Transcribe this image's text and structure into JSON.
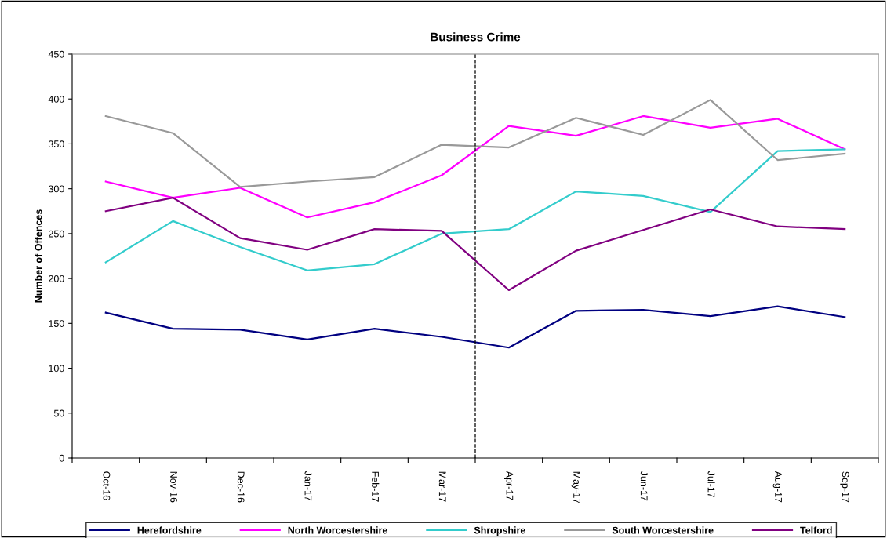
{
  "chart_data": {
    "type": "line",
    "title": "Business Crime",
    "ylabel": "Number of Offences",
    "categories": [
      "Oct-16",
      "Nov-16",
      "Dec-16",
      "Jan-17",
      "Feb-17",
      "Mar-17",
      "Apr-17",
      "May-17",
      "Jun-17",
      "Jul-17",
      "Aug-17",
      "Sep-17"
    ],
    "series": [
      {
        "name": "Herefordshire",
        "color": "#000080",
        "values": [
          162,
          144,
          143,
          132,
          144,
          135,
          123,
          164,
          165,
          158,
          169,
          157
        ]
      },
      {
        "name": "North Worcestershire",
        "color": "#ff00ff",
        "values": [
          308,
          290,
          301,
          268,
          285,
          315,
          370,
          359,
          381,
          368,
          378,
          344
        ]
      },
      {
        "name": "Shropshire",
        "color": "#33cccc",
        "values": [
          218,
          264,
          235,
          209,
          216,
          250,
          255,
          297,
          292,
          274,
          342,
          344
        ]
      },
      {
        "name": "South Worcestershire",
        "color": "#999999",
        "values": [
          381,
          362,
          302,
          308,
          313,
          349,
          346,
          379,
          360,
          399,
          332,
          339
        ]
      },
      {
        "name": "Telford",
        "color": "#800080",
        "values": [
          275,
          290,
          245,
          232,
          255,
          253,
          187,
          231,
          254,
          277,
          258,
          255
        ]
      }
    ],
    "ylim": [
      0,
      450
    ],
    "yticks": [
      0,
      50,
      100,
      150,
      200,
      250,
      300,
      350,
      400,
      450
    ],
    "grid": false,
    "legend": "bottom",
    "marker": "none",
    "line_style": "solid"
  }
}
